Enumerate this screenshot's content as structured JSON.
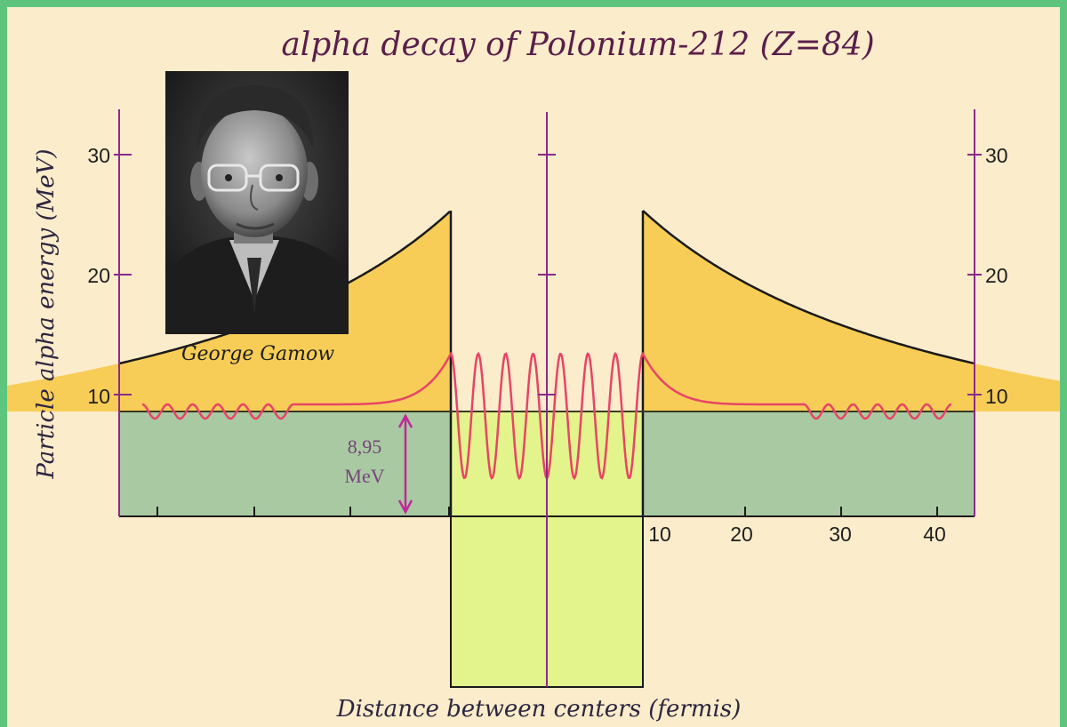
{
  "title": "alpha decay of  Polonium-212 (Z=84)",
  "y_axis_title": "Particle alpha energy (MeV)",
  "x_axis_title": "Distance between centers (fermis)",
  "y_ticks": [
    "30",
    "20",
    "10"
  ],
  "x_ticks": [
    "10",
    "20",
    "30",
    "40"
  ],
  "energy_annotation": {
    "value": "8,95",
    "unit": "MeV"
  },
  "portrait": {
    "caption": "George Gamow"
  },
  "colors": {
    "background": "#fbeccb",
    "border": "#5fc47e",
    "axis": "#8b2a8b",
    "barrier_fill": "#f7cd57",
    "classical_region_fill": "#e3f48c",
    "energy_region_fill": "#a9c9a3",
    "wavefunction": "#e84466",
    "arrow": "#c0279a"
  }
}
